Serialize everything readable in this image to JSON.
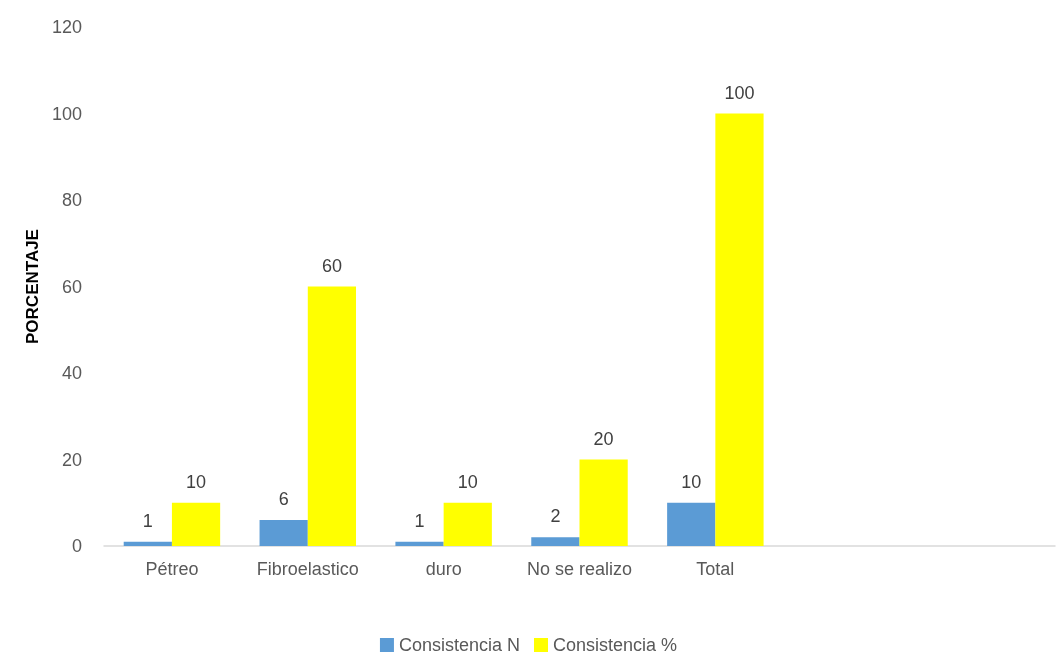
{
  "chart_data": {
    "type": "bar",
    "ylabel": "PORCENTAJE",
    "categories": [
      "Pétreo",
      "Fibroelastico",
      "duro",
      "No se realizo",
      "Total",
      null,
      null
    ],
    "series": [
      {
        "name": "Consistencia N",
        "color": "#5b9bd5",
        "values": [
          1,
          6,
          1,
          2,
          10,
          null,
          null
        ]
      },
      {
        "name": "Consistencia %",
        "color": "#ffff00",
        "values": [
          10,
          60,
          10,
          20,
          100,
          null,
          null
        ]
      }
    ],
    "ylim": [
      0,
      120
    ],
    "yticks": [
      0,
      20,
      40,
      60,
      80,
      100,
      120
    ],
    "grid": false,
    "legend": "bottom",
    "data_labels": true
  }
}
